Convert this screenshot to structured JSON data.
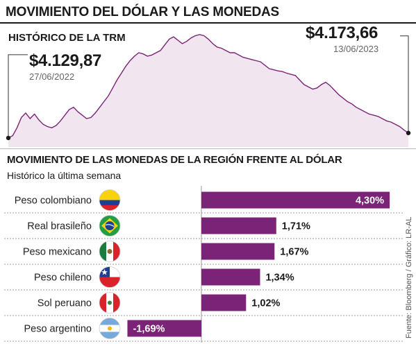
{
  "header": {
    "main_title": "MOVIMIENTO DEL DÓLAR Y LAS MONEDAS",
    "trm_title": "HISTÓRICO DE LA TRM"
  },
  "trm": {
    "start_value": "$4.129,87",
    "start_date": "27/06/2022",
    "end_value": "$4.173,66",
    "end_date": "13/06/2023"
  },
  "section": {
    "title": "MOVIMIENTO DE LAS MONEDAS DE LA REGIÓN FRENTE AL DÓLAR",
    "subtitle": "Histórico la última semana"
  },
  "credit": "Fuente: Bloomberg / Gráfico: LR-AL",
  "colors": {
    "accent": "#7a2377",
    "area_fill": "#f1e6f0",
    "line": "#7a2377",
    "row_line": "#9c9c9c"
  },
  "chart_data": [
    {
      "type": "area",
      "title": "HISTÓRICO DE LA TRM",
      "x_range": [
        "27/06/2022",
        "13/06/2023"
      ],
      "start": {
        "date": "27/06/2022",
        "value": 4129.87,
        "label": "$4.129,87"
      },
      "end": {
        "date": "13/06/2023",
        "value": 4173.66,
        "label": "$4.173,66"
      },
      "values": [
        4129.87,
        4150,
        4220,
        4310,
        4350,
        4300,
        4340,
        4290,
        4250,
        4230,
        4220,
        4240,
        4280,
        4330,
        4380,
        4400,
        4360,
        4330,
        4300,
        4310,
        4350,
        4400,
        4450,
        4500,
        4570,
        4640,
        4700,
        4760,
        4810,
        4850,
        4880,
        4870,
        4850,
        4860,
        4880,
        4900,
        4950,
        5000,
        5020,
        4990,
        4960,
        4980,
        5010,
        5030,
        5040,
        5030,
        5000,
        4960,
        4930,
        4920,
        4900,
        4880,
        4880,
        4860,
        4840,
        4830,
        4820,
        4810,
        4800,
        4770,
        4740,
        4730,
        4720,
        4715,
        4700,
        4690,
        4680,
        4640,
        4600,
        4580,
        4560,
        4570,
        4600,
        4620,
        4590,
        4550,
        4510,
        4480,
        4450,
        4430,
        4400,
        4380,
        4360,
        4340,
        4330,
        4320,
        4300,
        4280,
        4270,
        4250,
        4230,
        4200,
        4173.66
      ],
      "ylim": [
        4050,
        5100
      ]
    },
    {
      "type": "bar",
      "title": "MOVIMIENTO DE LAS MONEDAS DE LA REGIÓN FRENTE AL DÓLAR",
      "subtitle": "Histórico la última semana",
      "categories": [
        "Peso colombiano",
        "Real brasileño",
        "Peso mexicano",
        "Peso chileno",
        "Sol peruano",
        "Peso argentino"
      ],
      "values": [
        4.3,
        1.71,
        1.67,
        1.34,
        1.02,
        -1.69
      ],
      "labels": [
        "4,30%",
        "1,71%",
        "1,67%",
        "1,34%",
        "1,02%",
        "-1,69%"
      ],
      "flags": [
        "colombia-flag",
        "brazil-flag",
        "mexico-flag",
        "chile-flag",
        "peru-flag",
        "argentina-flag"
      ],
      "xlim": [
        -2.0,
        4.6
      ]
    }
  ]
}
